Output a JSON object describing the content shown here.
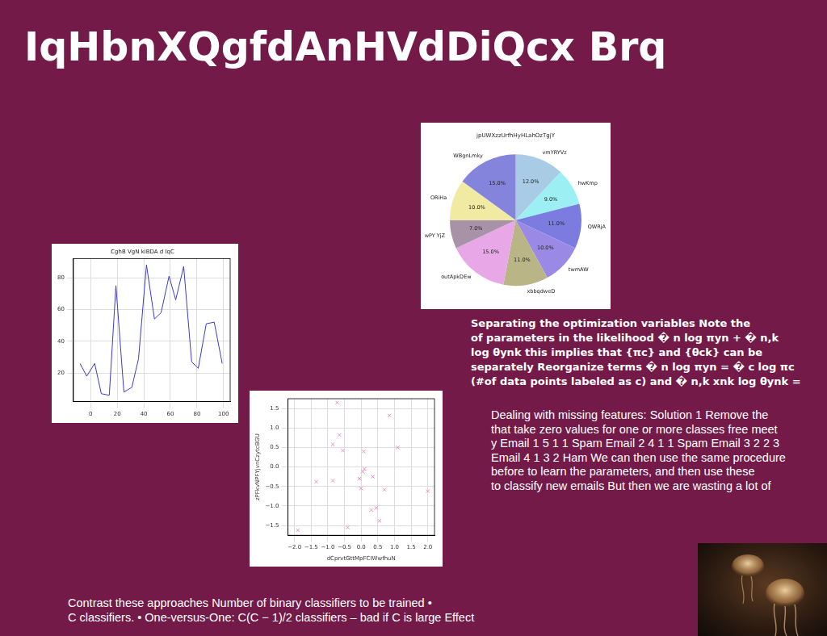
{
  "slide": {
    "title": "IqHbnXQgfdAnHVdDiQcx Brq",
    "texts": [
      [
        "Separating the optimization variables Note the",
        "of parameters in the likelihood � n log πyn + � n,k",
        "log θynk this implies that {πc} and {θck} can be",
        "separately Reorganize terms � n log πyn = � c log πc",
        "(#of data points labeled as c) and � n,k xnk log θynk ="
      ],
      [
        "Dealing with missing features: Solution 1 Remove the",
        "that take zero values for one or more classes free meet",
        "y Email 1 5 1 1 Spam Email 2 4 1 1 Spam Email 3 2 2 3",
        "Email 4 1 3 2 Ham We can then use the same procedure",
        "before to learn the parameters, and then use these",
        "to classify new emails But then we are wasting a lot of"
      ],
      [
        "Contrast these approaches Number of binary classifiers to be trained •",
        "C classifiers. • One-versus-One: C(C − 1)/2 classifiers – bad if C is large Effect"
      ]
    ]
  },
  "chart_data": [
    {
      "type": "line",
      "title": "CghB VgN kiBDA d IqC",
      "x": [
        -8,
        -3,
        3,
        8,
        14,
        19,
        25,
        31,
        36,
        42,
        48,
        53,
        59,
        64,
        70,
        76,
        81,
        87,
        93,
        99
      ],
      "values": [
        26,
        18,
        26,
        7,
        6,
        75,
        8,
        11,
        29,
        88,
        54,
        58,
        81,
        66,
        87,
        27,
        23,
        51,
        52,
        26
      ],
      "color": "#3b3bcc",
      "xlim": [
        -13,
        105
      ],
      "xticks": [
        0,
        20,
        40,
        60,
        80,
        100
      ],
      "ylim": [
        2,
        92
      ],
      "yticks": [
        20,
        40,
        60,
        80
      ],
      "grid": true
    },
    {
      "type": "pie",
      "title": "jpUWXzzUrfhHyHLahOzTgjY",
      "categories": [
        "vmYRYVz",
        "hwKmp",
        "QWRjA",
        "twmAW",
        "xbbqdweD",
        "outApkDEw",
        "wPY YjZ",
        "ORiHa",
        "WBgnLmky"
      ],
      "values": [
        12,
        9,
        11,
        10,
        11,
        15,
        7,
        10,
        15
      ],
      "value_labels": [
        "12.0%",
        "9.0%",
        "11.0%",
        "10.0%",
        "11.0%",
        "15.0%",
        "7.0%",
        "10.0%",
        "15.0%"
      ],
      "colors": [
        "#a8cce6",
        "#9cf0f4",
        "#7c7ce0",
        "#9a8ae6",
        "#b9b586",
        "#e8a8e8",
        "#a892a8",
        "#f0eaa2",
        "#8484dc"
      ],
      "data_labels": true
    },
    {
      "type": "scatter",
      "x_label": "dCprvtGttMpFCIWwfhuN",
      "y_label": "zPFkvNPFYjvnCzytcBGU",
      "x": [
        -1.9,
        -1.35,
        -0.85,
        -0.85,
        -0.72,
        -0.65,
        -0.55,
        -0.4,
        -0.05,
        0.0,
        0.05,
        0.08,
        0.1,
        0.3,
        0.35,
        0.45,
        0.55,
        0.7,
        0.85,
        1.1,
        2.0
      ],
      "y": [
        -1.62,
        -0.38,
        -0.35,
        0.58,
        1.65,
        0.82,
        0.42,
        -1.55,
        -0.3,
        -0.55,
        -0.12,
        0.4,
        -0.05,
        -1.1,
        -0.25,
        -1.05,
        -1.38,
        -0.58,
        1.32,
        0.5,
        -0.62
      ],
      "color": "#f08cc0",
      "marker": "x",
      "xlim": [
        -2.2,
        2.2
      ],
      "xticks": [
        {
          "value": -2,
          "label": "−2.0"
        },
        {
          "value": -1.5,
          "label": "−1.5"
        },
        {
          "value": -1,
          "label": "−1.0"
        },
        {
          "value": -0.5,
          "label": "−0.5"
        },
        {
          "value": 0,
          "label": "0.0"
        },
        {
          "value": 0.5,
          "label": "0.5"
        },
        {
          "value": 1,
          "label": "1.0"
        },
        {
          "value": 1.5,
          "label": "1.5"
        },
        {
          "value": 2,
          "label": "2.0"
        }
      ],
      "ylim": [
        -1.75,
        1.75
      ],
      "yticks": [
        {
          "value": -1.5,
          "label": "−1.5"
        },
        {
          "value": -1,
          "label": "−1.0"
        },
        {
          "value": -0.5,
          "label": "−0.5"
        },
        {
          "value": 0,
          "label": "0.0"
        },
        {
          "value": 0.5,
          "label": "0.5"
        },
        {
          "value": 1,
          "label": "1.0"
        },
        {
          "value": 1.5,
          "label": "1.5"
        }
      ],
      "grid": true
    }
  ]
}
